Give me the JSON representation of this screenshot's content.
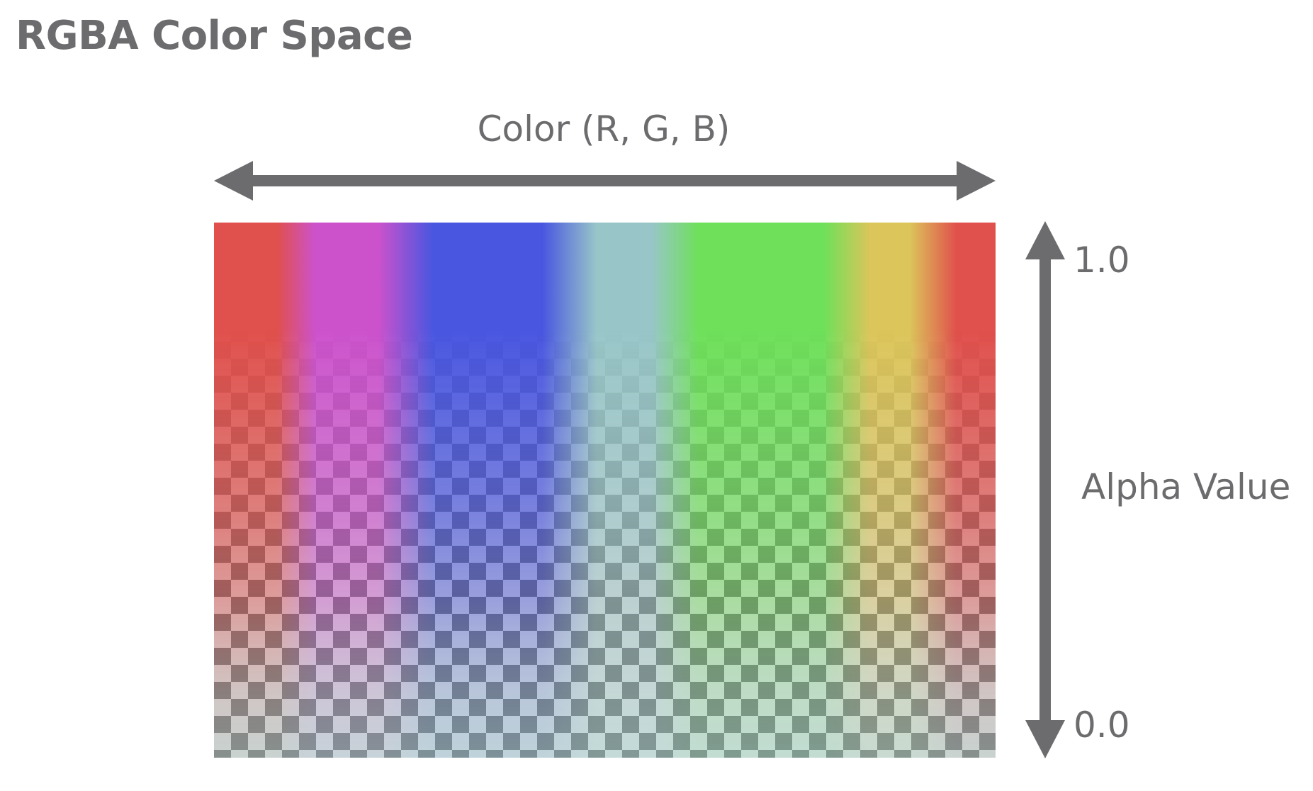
{
  "title": "RGBA Color Space",
  "horizontal_axis": {
    "label": "Color (R, G, B)"
  },
  "vertical_axis": {
    "label": "Alpha Value",
    "max_label": "1.0",
    "min_label": "0.0"
  },
  "colors": {
    "text": "#6c6c6f",
    "arrow": "#6c6c6f",
    "hues": [
      "#e0504c",
      "#cc52cc",
      "#4956e0",
      "#98c6c8",
      "#6ee05a",
      "#dcc55a",
      "#e0504c"
    ],
    "checker_dark": "#6a6a6a",
    "checker_light": "#d9d9d9"
  }
}
